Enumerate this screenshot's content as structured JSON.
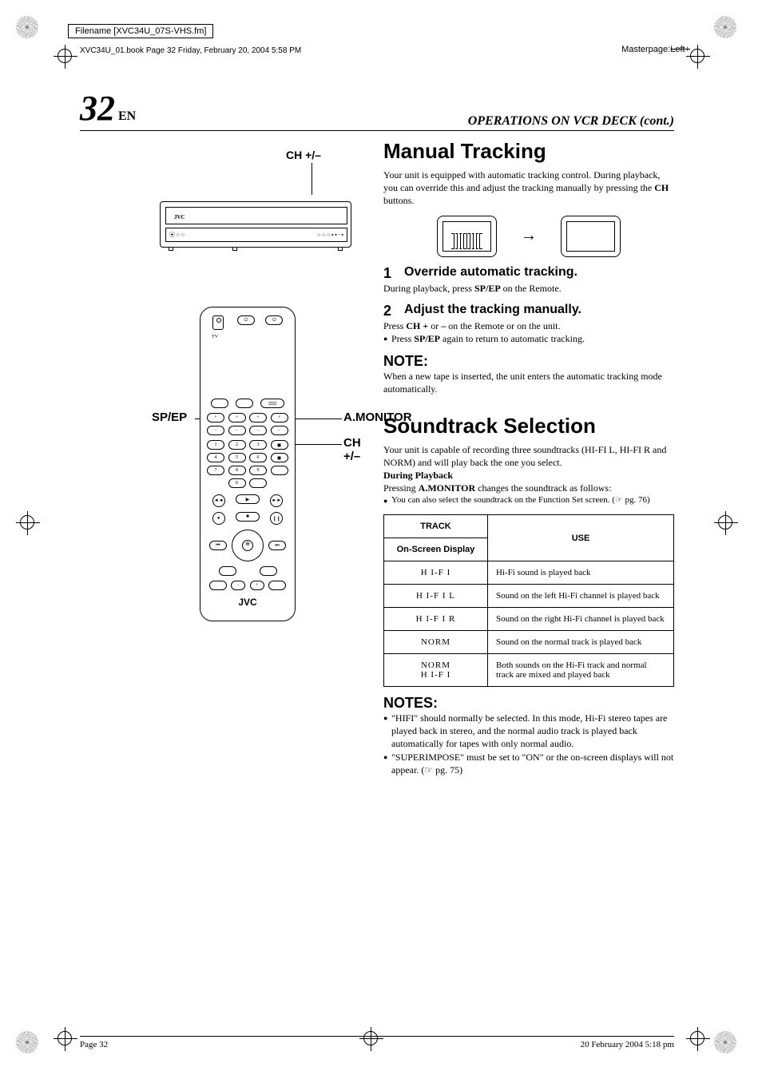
{
  "meta": {
    "filename": "Filename [XVC34U_07S-VHS.fm]",
    "booktag": "XVC34U_01.book  Page 32  Friday, February 20, 2004  5:58 PM",
    "masterpage_label": "Masterpage:",
    "masterpage_value": "Left+"
  },
  "header": {
    "page_number": "32",
    "lang": "EN",
    "section": "OPERATIONS ON VCR DECK (cont.)"
  },
  "left": {
    "vcr_label": "CH +/–",
    "vcr_logo": "JVC",
    "callouts": {
      "sp_ep": "SP/EP",
      "a_monitor": "A.MONITOR",
      "ch": "CH +/–"
    },
    "remote_logo": "JVC",
    "tv_label": "TV"
  },
  "manual_tracking": {
    "title": "Manual Tracking",
    "intro": "Your unit is equipped with automatic tracking control. During playback, you can override this and adjust the tracking manually by pressing the ",
    "intro_bold": "CH",
    "intro_tail": " buttons.",
    "step1_num": "1",
    "step1_title": "Override automatic tracking.",
    "step1_body_a": "During playback, press ",
    "step1_body_b": "SP/EP",
    "step1_body_c": " on the Remote.",
    "step2_num": "2",
    "step2_title": "Adjust the tracking manually.",
    "step2_body_a": "Press ",
    "step2_body_b": "CH +",
    "step2_body_c": " or ",
    "step2_body_d": "–",
    "step2_body_e": " on the Remote or on the unit.",
    "step2_bullet_a": "Press ",
    "step2_bullet_b": "SP/EP",
    "step2_bullet_c": " again to return to automatic tracking.",
    "note_hd": "NOTE:",
    "note_body": "When a new tape is inserted, the unit enters the automatic tracking mode automatically."
  },
  "soundtrack": {
    "title": "Soundtrack Selection",
    "intro": "Your unit is capable of recording three soundtracks (HI-FI L, HI-FI R and NORM) and will play back the one you select.",
    "during_hd": "During Playback",
    "during_body_a": "Pressing ",
    "during_body_b": "A.MONITOR",
    "during_body_c": " changes the soundtrack as follows:",
    "bullet": "You can also select the soundtrack on the Function Set screen. (☞ pg. 76)",
    "table": {
      "col1a": "TRACK",
      "col1b": "On-Screen Display",
      "col2": "USE",
      "rows": [
        {
          "track": "H I-F I",
          "use": "Hi-Fi sound is played back"
        },
        {
          "track": "H I-F I L",
          "use": "Sound on the left Hi-Fi channel is played back"
        },
        {
          "track": "H I-F I R",
          "use": "Sound on the right Hi-Fi channel is played back"
        },
        {
          "track": "NORM",
          "use": "Sound on the normal track is played back"
        },
        {
          "track": "NORM\nH I-F I",
          "use": "Both sounds on the Hi-Fi track and normal track are mixed and played back"
        }
      ]
    },
    "notes_hd": "NOTES:",
    "notes": [
      "\"HIFI\" should normally be selected. In this mode, Hi-Fi stereo tapes are played back in stereo, and the normal audio track is played back automatically for tapes with only normal audio.",
      "\"SUPERIMPOSE\" must be set to \"ON\" or the on-screen displays will not appear. (☞ pg. 75)"
    ]
  },
  "footer": {
    "left": "Page 32",
    "right": "20 February 2004 5:18 pm"
  }
}
